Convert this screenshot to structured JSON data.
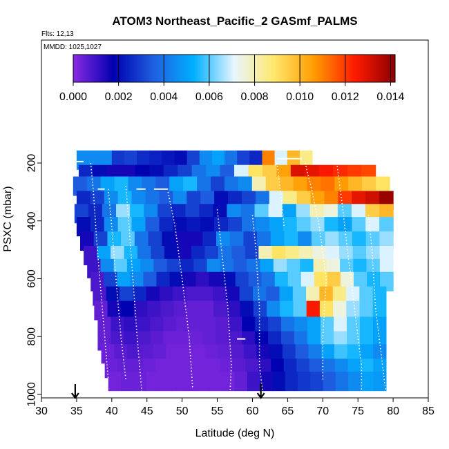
{
  "header": {
    "title": "ATOM3 Northeast_Pacific_2 GASmf_PALMS",
    "flights": "Flts: 12,13",
    "dates": "MMDD: 1025,1027"
  },
  "chart_data": {
    "type": "heatmap",
    "title": "ATOM3 Northeast_Pacific_2 GASmf_PALMS",
    "xlabel": "Latitude (deg N)",
    "ylabel": "PSXC (mbar)",
    "xlim": [
      30,
      85
    ],
    "ylim": [
      1000,
      0
    ],
    "x_ticks": [
      "30",
      "35",
      "40",
      "45",
      "50",
      "55",
      "60",
      "65",
      "70",
      "75",
      "80",
      "85"
    ],
    "y_ticks": [
      "200",
      "400",
      "600",
      "800",
      "1000"
    ],
    "colorbar": {
      "range": [
        0,
        0.0142
      ],
      "ticks": [
        "0.000",
        "0.002",
        "0.004",
        "0.006",
        "0.008",
        "0.010",
        "0.012",
        "0.014"
      ],
      "colors": [
        "#8a2be2",
        "#0000b0",
        "#1f5fe0",
        "#00b0ff",
        "#e8f6ff",
        "#ffe86a",
        "#ff9a00",
        "#ff1a00",
        "#8b0000"
      ]
    },
    "arrows_at_lat": [
      34.8,
      61.2
    ],
    "pressure_rows": [
      {
        "p": 190,
        "x0": 35.0,
        "x1": 40.0,
        "v": [
          0.0045
        ]
      },
      {
        "p": 190,
        "x0": 40.0,
        "x1": 68.5,
        "v": [
          0.0028,
          0.003,
          0.0026,
          0.0024,
          0.0022,
          0.002,
          0.003,
          0.0045,
          0.005,
          0.004,
          0.003,
          0.0025,
          0.011,
          0.007,
          0.01,
          0.0085
        ]
      },
      {
        "p": 240,
        "x0": 35.3,
        "x1": 77.5,
        "v": [
          0.0025,
          0.002,
          0.0015,
          0.0015,
          0.0018,
          0.002,
          0.0025,
          0.003,
          0.004,
          0.0045,
          0.0035,
          0.007,
          0.009,
          0.0095,
          0.0105,
          0.013,
          0.0128,
          0.0125,
          0.0122,
          0.012,
          0.0118
        ]
      },
      {
        "p": 280,
        "x0": 34.5,
        "x1": 79.5,
        "v": [
          0.0035,
          0.004,
          0.005,
          0.0055,
          0.0045,
          0.004,
          0.0035,
          0.005,
          0.0055,
          0.004,
          0.003,
          0.004,
          0.0045,
          0.008,
          0.0095,
          0.01,
          0.0105,
          0.011,
          0.0112,
          0.0106,
          0.01,
          0.0095,
          0.009
        ]
      },
      {
        "p": 330,
        "x0": 35.0,
        "x1": 80.0,
        "v": [
          0.0025,
          0.003,
          0.0045,
          0.0055,
          0.0045,
          0.004,
          0.0035,
          0.0045,
          0.003,
          0.0035,
          0.002,
          0.0025,
          0.003,
          0.004,
          0.007,
          0.0085,
          0.0095,
          0.0105,
          0.011,
          0.012,
          0.0128,
          0.0132,
          0.014
        ]
      },
      {
        "p": 375,
        "x0": 34.7,
        "x1": 80.0,
        "v": [
          0.003,
          0.0025,
          0.004,
          0.0065,
          0.0055,
          0.0045,
          0.003,
          0.0025,
          0.003,
          0.0025,
          0.002,
          0.0045,
          0.004,
          0.006,
          0.007,
          0.005,
          0.0065,
          0.008,
          0.0075,
          0.006,
          0.007,
          0.0095,
          0.01
        ]
      },
      {
        "p": 420,
        "x0": 35.0,
        "x1": 80.0,
        "v": [
          0.002,
          0.0025,
          0.0045,
          0.006,
          0.005,
          0.0035,
          0.0025,
          0.002,
          0.0022,
          0.002,
          0.0025,
          0.003,
          0.004,
          0.0045,
          0.005,
          0.0055,
          0.006,
          0.0065,
          0.0055,
          0.005,
          0.006,
          0.007,
          0.006
        ]
      },
      {
        "p": 470,
        "x0": 35.5,
        "x1": 80.0,
        "v": [
          0.0015,
          0.003,
          0.0055,
          0.006,
          0.004,
          0.003,
          0.002,
          0.0015,
          0.0015,
          0.0025,
          0.0045,
          0.004,
          0.003,
          0.004,
          0.005,
          0.0055,
          0.0045,
          0.006,
          0.0065,
          0.006,
          0.0055,
          0.006,
          0.0065
        ]
      },
      {
        "p": 520,
        "x0": 36.0,
        "x1": 80.0,
        "v": [
          0.001,
          0.005,
          0.0065,
          0.0055,
          0.004,
          0.003,
          0.002,
          0.0015,
          0.0025,
          0.003,
          0.004,
          0.0035,
          0.003,
          0.008,
          0.009,
          0.0085,
          0.008,
          0.0075,
          0.007,
          0.0065,
          0.006,
          0.0065,
          0.007
        ]
      },
      {
        "p": 565,
        "x0": 36.5,
        "x1": 80.0,
        "v": [
          0.001,
          0.0045,
          0.006,
          0.005,
          0.0045,
          0.0035,
          0.003,
          0.0025,
          0.003,
          0.0045,
          0.004,
          0.0035,
          0.004,
          0.005,
          0.0065,
          0.006,
          0.0055,
          0.008,
          0.0075,
          0.006,
          0.0055,
          0.006,
          0.007
        ]
      },
      {
        "p": 610,
        "x0": 37.0,
        "x1": 80.0,
        "v": [
          0.0008,
          0.003,
          0.005,
          0.0045,
          0.0035,
          0.0025,
          0.002,
          0.0015,
          0.0012,
          0.0015,
          0.002,
          0.003,
          0.0035,
          0.004,
          0.0055,
          0.006,
          0.007,
          0.009,
          0.0095,
          0.0075,
          0.006,
          0.0055,
          0.006
        ]
      },
      {
        "p": 660,
        "x0": 37.3,
        "x1": 79.0,
        "v": [
          0.0008,
          0.002,
          0.003,
          0.0025,
          0.0015,
          0.0012,
          0.001,
          0.0008,
          0.0008,
          0.001,
          0.0015,
          0.003,
          0.004,
          0.0035,
          0.005,
          0.006,
          0.008,
          0.01,
          0.0085,
          0.007,
          0.006,
          0.0055
        ]
      },
      {
        "p": 710,
        "x0": 37.5,
        "x1": 79.0,
        "v": [
          0.0005,
          0.0015,
          0.0018,
          0.0012,
          0.001,
          0.0008,
          0.0006,
          0.0005,
          0.0005,
          0.0008,
          0.0012,
          0.002,
          0.003,
          0.0045,
          0.0055,
          0.006,
          0.0125,
          0.009,
          0.0075,
          0.0065,
          0.006,
          0.0055
        ]
      },
      {
        "p": 765,
        "x0": 38.0,
        "x1": 79.0,
        "v": [
          0.0005,
          0.001,
          0.0012,
          0.001,
          0.0008,
          0.0006,
          0.0005,
          0.0005,
          0.0005,
          0.0006,
          0.001,
          0.0018,
          0.0025,
          0.003,
          0.004,
          0.0045,
          0.005,
          0.006,
          0.007,
          0.006,
          0.0055,
          0.005
        ]
      },
      {
        "p": 815,
        "x0": 38.0,
        "x1": 79.0,
        "v": [
          0.0005,
          0.0008,
          0.001,
          0.0008,
          0.0006,
          0.0004,
          0.0004,
          0.0004,
          0.0005,
          0.0006,
          0.0008,
          0.0012,
          0.0018,
          0.0025,
          0.0032,
          0.004,
          0.005,
          0.006,
          0.0065,
          0.006,
          0.0055,
          0.005
        ]
      },
      {
        "p": 860,
        "x0": 38.5,
        "x1": 79.0,
        "v": [
          0.0004,
          0.0006,
          0.0008,
          0.0006,
          0.0005,
          0.0003,
          0.0003,
          0.0003,
          0.0004,
          0.0005,
          0.0007,
          0.001,
          0.0015,
          0.002,
          0.0028,
          0.0035,
          0.0042,
          0.005,
          0.0058,
          0.0055,
          0.005,
          0.0045
        ]
      },
      {
        "p": 910,
        "x0": 39.0,
        "x1": 79.0,
        "v": [
          0.0004,
          0.0005,
          0.0005,
          0.0004,
          0.0003,
          0.0003,
          0.0003,
          0.0003,
          0.0003,
          0.0004,
          0.0006,
          0.0008,
          0.0012,
          0.0018,
          0.0025,
          0.003,
          0.0035,
          0.004,
          0.0045,
          0.005,
          0.0055,
          0.005
        ]
      },
      {
        "p": 955,
        "x0": 39.5,
        "x1": 79.0,
        "v": [
          0.0003,
          0.0004,
          0.0004,
          0.0003,
          0.0003,
          0.0003,
          0.0003,
          0.0003,
          0.0003,
          0.0003,
          0.0005,
          0.001,
          0.0015,
          0.002,
          0.0025,
          0.0028,
          0.003,
          0.0035,
          0.004,
          0.0045,
          0.005,
          0.0048
        ]
      }
    ]
  }
}
